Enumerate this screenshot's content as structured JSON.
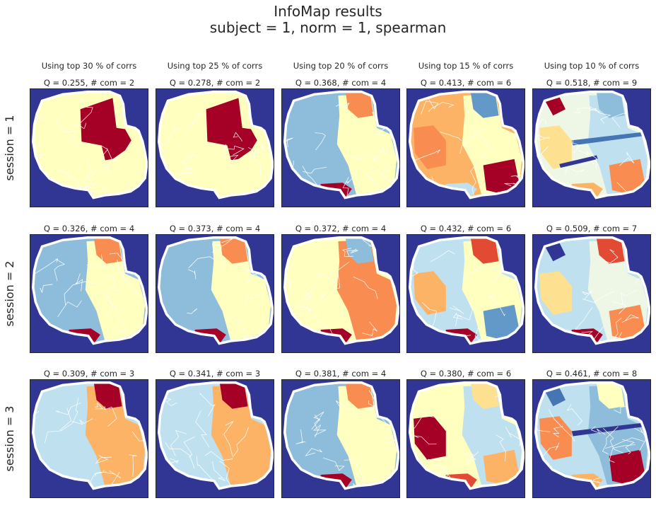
{
  "title": {
    "line1": "InfoMap results",
    "line2": "subject = 1,   norm = 1,   spearman"
  },
  "columns": [
    "Using top 30 % of corrs",
    "Using top 25 % of corrs",
    "Using top 20 % of corrs",
    "Using top 15 % of corrs",
    "Using top 10 % of corrs"
  ],
  "rows": [
    "session = 1",
    "session = 2",
    "session = 3"
  ],
  "colors": {
    "background": "#313695",
    "brain": "#ffffff",
    "palette": [
      "#313695",
      "#4575b4",
      "#6399c9",
      "#8dbdda",
      "#bfe0ee",
      "#eef7e6",
      "#ffffbf",
      "#fee190",
      "#fdb366",
      "#f88c51",
      "#e34a33",
      "#a50026"
    ]
  },
  "chart_data": {
    "type": "heatmap",
    "description_of_grid": "5 x 3 grid of community maps",
    "panels": [
      {
        "session": 1,
        "threshold_pct": 30,
        "label": "Q = 0.255,  # com = 2",
        "Q": 0.255,
        "communities": 2,
        "colors": [
          "#ffffbf",
          "#a50026"
        ]
      },
      {
        "session": 1,
        "threshold_pct": 25,
        "label": "Q = 0.278,  # com = 2",
        "Q": 0.278,
        "communities": 2,
        "colors": [
          "#ffffbf",
          "#a50026"
        ]
      },
      {
        "session": 1,
        "threshold_pct": 20,
        "label": "Q = 0.368,  # com = 4",
        "Q": 0.368,
        "communities": 4,
        "colors": [
          "#8dbdda",
          "#ffffbf",
          "#f88c51",
          "#a50026"
        ]
      },
      {
        "session": 1,
        "threshold_pct": 15,
        "label": "Q = 0.413,  # com = 6",
        "Q": 0.413,
        "communities": 6,
        "colors": [
          "#fdb366",
          "#ffffbf",
          "#6399c9",
          "#bfe0ee",
          "#f88c51",
          "#a50026"
        ]
      },
      {
        "session": 1,
        "threshold_pct": 10,
        "label": "Q = 0.518,  # com = 9",
        "Q": 0.518,
        "communities": 9,
        "colors": [
          "#eef7e6",
          "#bfe0ee",
          "#8dbdda",
          "#fdb366",
          "#fee190",
          "#f88c51",
          "#a50026",
          "#4575b4",
          "#313695"
        ]
      },
      {
        "session": 2,
        "threshold_pct": 30,
        "label": "Q = 0.326,  # com = 4",
        "Q": 0.326,
        "communities": 4,
        "colors": [
          "#8dbdda",
          "#ffffbf",
          "#f88c51",
          "#a50026"
        ]
      },
      {
        "session": 2,
        "threshold_pct": 25,
        "label": "Q = 0.373,  # com = 4",
        "Q": 0.373,
        "communities": 4,
        "colors": [
          "#8dbdda",
          "#ffffbf",
          "#f88c51",
          "#a50026"
        ]
      },
      {
        "session": 2,
        "threshold_pct": 20,
        "label": "Q = 0.372,  # com = 4",
        "Q": 0.372,
        "communities": 4,
        "colors": [
          "#ffffbf",
          "#f88c51",
          "#8dbdda",
          "#a50026"
        ]
      },
      {
        "session": 2,
        "threshold_pct": 15,
        "label": "Q = 0.432,  # com = 6",
        "Q": 0.432,
        "communities": 6,
        "colors": [
          "#bfe0ee",
          "#ffffbf",
          "#e34a33",
          "#a50026",
          "#fdb366",
          "#6399c9"
        ]
      },
      {
        "session": 2,
        "threshold_pct": 10,
        "label": "Q = 0.509,  # com = 7",
        "Q": 0.509,
        "communities": 7,
        "colors": [
          "#bfe0ee",
          "#eef7e6",
          "#e34a33",
          "#a50026",
          "#fee190",
          "#f88c51",
          "#313695"
        ]
      },
      {
        "session": 3,
        "threshold_pct": 30,
        "label": "Q = 0.309,  # com = 3",
        "Q": 0.309,
        "communities": 3,
        "colors": [
          "#bfe0ee",
          "#fdb366",
          "#a50026"
        ]
      },
      {
        "session": 3,
        "threshold_pct": 25,
        "label": "Q = 0.341,  # com = 3",
        "Q": 0.341,
        "communities": 3,
        "colors": [
          "#bfe0ee",
          "#fdb366",
          "#a50026"
        ]
      },
      {
        "session": 3,
        "threshold_pct": 20,
        "label": "Q = 0.381,  # com = 4",
        "Q": 0.381,
        "communities": 4,
        "colors": [
          "#8dbdda",
          "#ffffbf",
          "#f88c51",
          "#a50026"
        ]
      },
      {
        "session": 3,
        "threshold_pct": 15,
        "label": "Q = 0.380,  # com = 6",
        "Q": 0.38,
        "communities": 6,
        "colors": [
          "#ffffbf",
          "#bfe0ee",
          "#fee190",
          "#e34a33",
          "#a50026",
          "#fdb366"
        ]
      },
      {
        "session": 3,
        "threshold_pct": 10,
        "label": "Q = 0.461,  # com = 8",
        "Q": 0.461,
        "communities": 8,
        "colors": [
          "#bfe0ee",
          "#8dbdda",
          "#ffffbf",
          "#fdb366",
          "#f88c51",
          "#a50026",
          "#4575b4",
          "#313695"
        ]
      }
    ]
  }
}
